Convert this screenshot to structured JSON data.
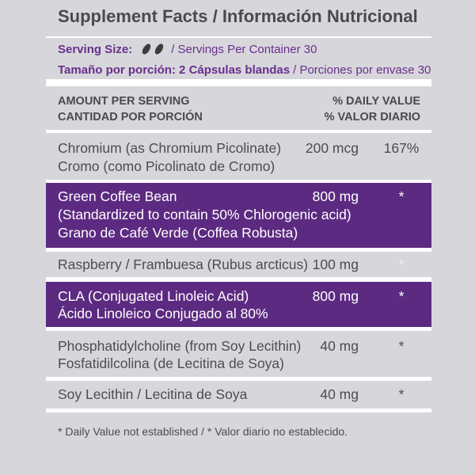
{
  "title": "Supplement Facts / Información Nutricional",
  "serving": {
    "size_label": "Serving Size:",
    "size_icon": "softgel-capsule-icon",
    "servings_per_container": "/ Servings Per Container 30",
    "size_label_es": "Tamaño por porción: 2 Cápsulas blandas",
    "servings_per_container_es": "/ Porciones por envase 30"
  },
  "header": {
    "amount_per_serving": "AMOUNT PER SERVING",
    "amount_per_serving_es": "CANTIDAD POR PORCIÓN",
    "daily_value": "% DAILY VALUE",
    "daily_value_es": "% VALOR DIARIO"
  },
  "rows": [
    {
      "name": [
        "Chromium (as Chromium Picolinate)",
        "Cromo (como Picolinato de Cromo)"
      ],
      "amount": "200 mcg",
      "daily_value": "167%"
    },
    {
      "name": [
        "Green Coffee Bean",
        "(Standardized to contain 50% Chlorogenic acid)",
        "Grano de Café Verde (Coffea Robusta)"
      ],
      "amount": "800 mg",
      "daily_value": "*"
    },
    {
      "name": [
        "Raspberry / Frambuesa (Rubus arcticus)"
      ],
      "amount": "100 mg",
      "daily_value": "*"
    },
    {
      "name": [
        "CLA (Conjugated Linoleic Acid)",
        "Ácido Linoleico Conjugado al 80%"
      ],
      "amount": "800 mg",
      "daily_value": "*"
    },
    {
      "name": [
        "Phosphatidylcholine (from Soy Lecithin)",
        "Fosfatidilcolina (de Lecitina de Soya)"
      ],
      "amount": "40 mg",
      "daily_value": "*"
    },
    {
      "name": [
        "Soy Lecithin / Lecitina de Soya"
      ],
      "amount": "40 mg",
      "daily_value": "*"
    }
  ],
  "footnote": "* Daily Value not established / * Valor diario no establecido.",
  "colors": {
    "background": "#d7d7db",
    "separator": "#ffffff",
    "text": "#4d4d4f",
    "accent_purple": "#5c2a81",
    "serving_text_purple": "#6a2e8e",
    "capsule": "#3c3c3e"
  }
}
